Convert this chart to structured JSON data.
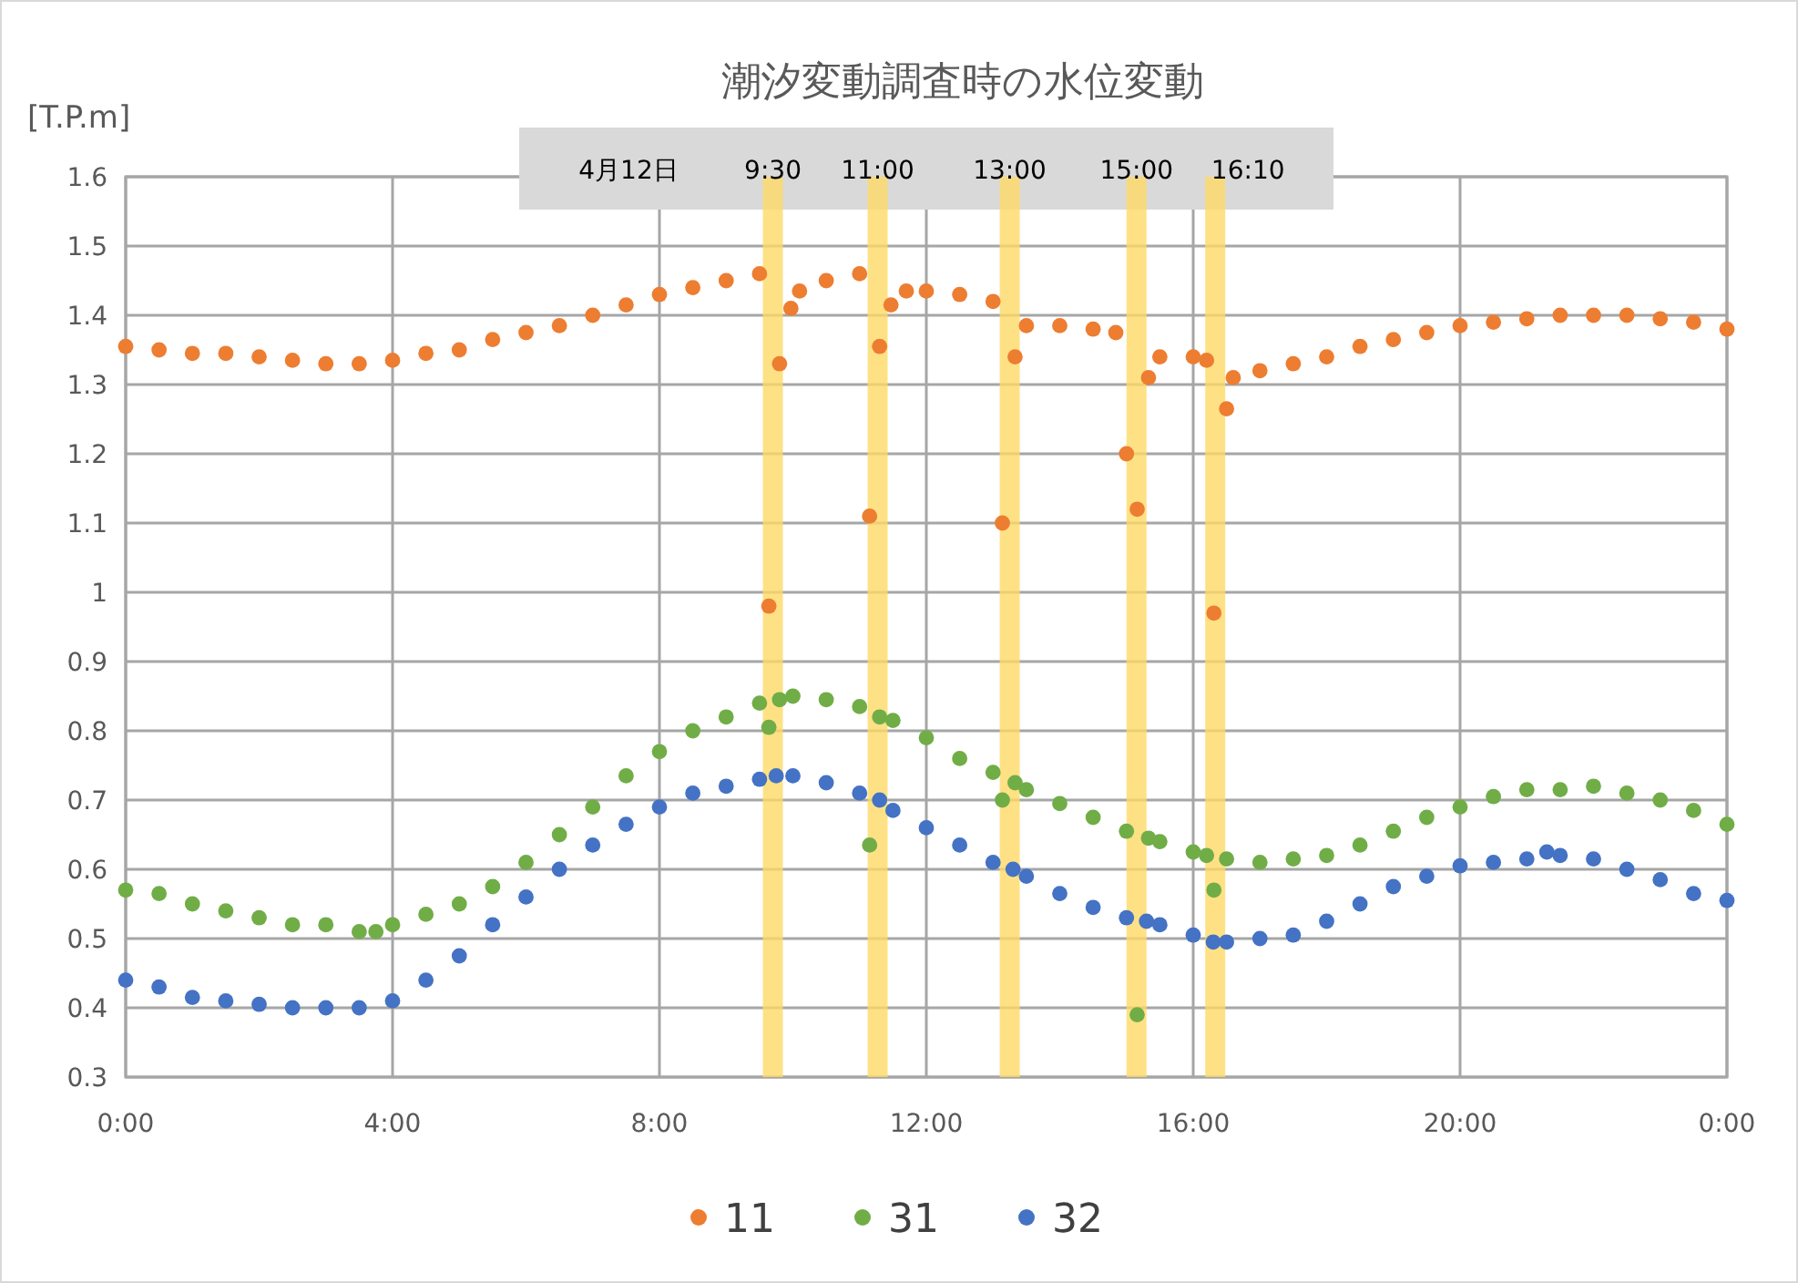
{
  "chart_data": {
    "type": "scatter",
    "title": "潮汐変動調査時の水位変動",
    "ylabel": "[T.P.m]",
    "annotations": [
      "4月12日"
    ],
    "xlim": [
      0,
      24
    ],
    "xticks": [
      {
        "value": 0,
        "label": "0:00"
      },
      {
        "value": 4,
        "label": "4:00"
      },
      {
        "value": 8,
        "label": "8:00"
      },
      {
        "value": 12,
        "label": "12:00"
      },
      {
        "value": 16,
        "label": "16:00"
      },
      {
        "value": 20,
        "label": "20:00"
      },
      {
        "value": 24,
        "label": "0:00"
      }
    ],
    "ylim": [
      0.3,
      1.6
    ],
    "yticks": [
      0.3,
      0.4,
      0.5,
      0.6,
      0.7,
      0.8,
      0.9,
      1,
      1.1,
      1.2,
      1.3,
      1.4,
      1.5,
      1.6
    ],
    "grid": true,
    "legend": "bottom",
    "marker": "circle",
    "bands": [
      {
        "axis": "x",
        "from": 9.55,
        "to": 9.85,
        "label": "9:30",
        "color": "#ffd966"
      },
      {
        "axis": "x",
        "from": 11.12,
        "to": 11.42,
        "label": "11:00",
        "color": "#ffd966"
      },
      {
        "axis": "x",
        "from": 13.1,
        "to": 13.4,
        "label": "13:00",
        "color": "#ffd966"
      },
      {
        "axis": "x",
        "from": 15.0,
        "to": 15.3,
        "label": "15:00",
        "color": "#ffd966"
      },
      {
        "axis": "x",
        "from": 16.18,
        "to": 16.48,
        "label": "16:10",
        "color": "#ffd966"
      }
    ],
    "series": [
      {
        "name": "11",
        "color": "#ed7d31",
        "x": [
          0,
          0.5,
          1,
          1.5,
          2,
          2.5,
          3,
          3.5,
          4,
          4.5,
          5,
          5.5,
          6,
          6.5,
          7,
          7.5,
          8,
          8.5,
          9,
          9.5,
          9.64,
          9.8,
          9.97,
          10.1,
          10.5,
          11,
          11.15,
          11.3,
          11.47,
          11.7,
          12,
          12.5,
          13,
          13.14,
          13.33,
          13.5,
          14,
          14.5,
          14.84,
          15,
          15.16,
          15.33,
          15.5,
          16,
          16.2,
          16.31,
          16.5,
          16.6,
          17,
          17.5,
          18,
          18.5,
          19,
          19.5,
          20,
          20.5,
          21,
          21.5,
          22,
          22.5,
          23,
          23.5,
          24
        ],
        "values": [
          1.355,
          1.35,
          1.345,
          1.345,
          1.34,
          1.335,
          1.33,
          1.33,
          1.335,
          1.345,
          1.35,
          1.365,
          1.375,
          1.385,
          1.4,
          1.415,
          1.43,
          1.44,
          1.45,
          1.46,
          0.98,
          1.33,
          1.41,
          1.435,
          1.45,
          1.46,
          1.11,
          1.355,
          1.415,
          1.435,
          1.435,
          1.43,
          1.42,
          1.1,
          1.34,
          1.385,
          1.385,
          1.38,
          1.375,
          1.2,
          1.12,
          1.31,
          1.34,
          1.34,
          1.335,
          0.97,
          1.265,
          1.31,
          1.32,
          1.33,
          1.34,
          1.355,
          1.365,
          1.375,
          1.385,
          1.39,
          1.395,
          1.4,
          1.4,
          1.4,
          1.395,
          1.39,
          1.38
        ]
      },
      {
        "name": "31",
        "color": "#70ad47",
        "x": [
          0,
          0.5,
          1,
          1.5,
          2,
          2.5,
          3,
          3.5,
          3.75,
          4,
          4.5,
          5,
          5.5,
          6,
          6.5,
          7,
          7.5,
          8,
          8.5,
          9,
          9.5,
          9.64,
          9.8,
          10,
          10.5,
          11,
          11.15,
          11.3,
          11.5,
          12,
          12.5,
          13,
          13.14,
          13.33,
          13.5,
          14,
          14.5,
          15,
          15.16,
          15.33,
          15.5,
          16,
          16.2,
          16.31,
          16.5,
          17,
          17.5,
          18,
          18.5,
          19,
          19.5,
          20,
          20.5,
          21,
          21.5,
          22,
          22.5,
          23,
          23.5,
          24
        ],
        "values": [
          0.57,
          0.565,
          0.55,
          0.54,
          0.53,
          0.52,
          0.52,
          0.51,
          0.51,
          0.52,
          0.535,
          0.55,
          0.575,
          0.61,
          0.65,
          0.69,
          0.735,
          0.77,
          0.8,
          0.82,
          0.84,
          0.805,
          0.845,
          0.85,
          0.845,
          0.835,
          0.635,
          0.82,
          0.815,
          0.79,
          0.76,
          0.74,
          0.7,
          0.725,
          0.715,
          0.695,
          0.675,
          0.655,
          0.39,
          0.645,
          0.64,
          0.625,
          0.62,
          0.57,
          0.615,
          0.61,
          0.615,
          0.62,
          0.635,
          0.655,
          0.675,
          0.69,
          0.705,
          0.715,
          0.715,
          0.72,
          0.71,
          0.7,
          0.685,
          0.665
        ]
      },
      {
        "name": "32",
        "color": "#4472c4",
        "x": [
          0,
          0.5,
          1,
          1.5,
          2,
          2.5,
          3,
          3.5,
          4,
          4.5,
          5,
          5.5,
          6,
          6.5,
          7,
          7.5,
          8,
          8.5,
          9,
          9.5,
          9.75,
          10,
          10.5,
          11,
          11.3,
          11.5,
          12,
          12.5,
          13,
          13.3,
          13.5,
          14,
          14.5,
          15,
          15.3,
          15.5,
          16,
          16.3,
          16.5,
          17,
          17.5,
          18,
          18.5,
          19,
          19.5,
          20,
          20.5,
          21,
          21.3,
          21.5,
          22,
          22.5,
          23,
          23.5,
          24
        ],
        "values": [
          0.44,
          0.43,
          0.415,
          0.41,
          0.405,
          0.4,
          0.4,
          0.4,
          0.41,
          0.44,
          0.475,
          0.52,
          0.56,
          0.6,
          0.635,
          0.665,
          0.69,
          0.71,
          0.72,
          0.73,
          0.735,
          0.735,
          0.725,
          0.71,
          0.7,
          0.685,
          0.66,
          0.635,
          0.61,
          0.6,
          0.59,
          0.565,
          0.545,
          0.53,
          0.525,
          0.52,
          0.505,
          0.495,
          0.495,
          0.5,
          0.505,
          0.525,
          0.55,
          0.575,
          0.59,
          0.605,
          0.61,
          0.615,
          0.625,
          0.62,
          0.615,
          0.6,
          0.585,
          0.565,
          0.555
        ]
      }
    ]
  }
}
